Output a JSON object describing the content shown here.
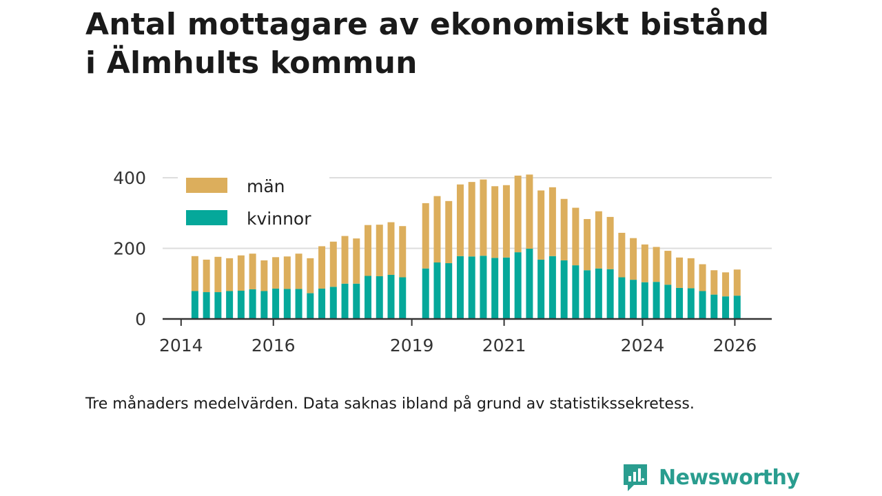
{
  "title_line1": "Antal mottagare av ekonomiskt bistånd",
  "title_line2": "i Älmhults kommun",
  "note": "Tre månaders medelvärden. Data saknas ibland på grund av statistikssekretess.",
  "brand": {
    "name": "Newsworthy"
  },
  "colors": {
    "man": "#dcae5c",
    "kvinnor": "#05a89a",
    "axis": "#333333",
    "grid": "#dddddd",
    "brand": "#2a9d8f"
  },
  "chart_data": {
    "type": "bar",
    "stacked": true,
    "title": "Antal mottagare av ekonomiskt bistånd i Älmhults kommun",
    "xlabel": "",
    "ylabel": "",
    "ylim": [
      0,
      420
    ],
    "yticks": [
      0,
      200,
      400
    ],
    "xticks": [
      {
        "label": "2014",
        "x": 2014.0
      },
      {
        "label": "2016",
        "x": 2016.0
      },
      {
        "label": "2019",
        "x": 2019.0
      },
      {
        "label": "2021",
        "x": 2021.0
      },
      {
        "label": "2024",
        "x": 2024.0
      },
      {
        "label": "2026",
        "x": 2026.0
      }
    ],
    "xlim": [
      2013.6,
      2026.8
    ],
    "legend": {
      "position": "top-left",
      "entries": [
        "män",
        "kvinnor"
      ]
    },
    "series": [
      {
        "name": "kvinnor",
        "x": [
          2014.3,
          2014.55,
          2014.8,
          2015.05,
          2015.3,
          2015.55,
          2015.8,
          2016.05,
          2016.3,
          2016.55,
          2016.8,
          2017.05,
          2017.3,
          2017.55,
          2017.8,
          2018.05,
          2018.3,
          2018.55,
          2018.8,
          2019.3,
          2019.55,
          2019.8,
          2020.05,
          2020.3,
          2020.55,
          2020.8,
          2021.05,
          2021.3,
          2021.55,
          2021.8,
          2022.05,
          2022.3,
          2022.55,
          2022.8,
          2023.05,
          2023.3,
          2023.55,
          2023.8,
          2024.05,
          2024.3,
          2024.55,
          2024.8,
          2025.05,
          2025.3,
          2025.55,
          2025.8,
          2026.05
        ],
        "values": [
          79,
          76,
          76,
          79,
          80,
          84,
          79,
          86,
          85,
          85,
          73,
          86,
          91,
          100,
          100,
          122,
          121,
          125,
          118,
          143,
          160,
          158,
          178,
          177,
          179,
          173,
          174,
          189,
          199,
          168,
          178,
          166,
          152,
          138,
          143,
          141,
          118,
          111,
          104,
          105,
          97,
          88,
          87,
          79,
          69,
          64,
          66
        ]
      },
      {
        "name": "män",
        "x": [
          2014.3,
          2014.55,
          2014.8,
          2015.05,
          2015.3,
          2015.55,
          2015.8,
          2016.05,
          2016.3,
          2016.55,
          2016.8,
          2017.05,
          2017.3,
          2017.55,
          2017.8,
          2018.05,
          2018.3,
          2018.55,
          2018.8,
          2019.3,
          2019.55,
          2019.8,
          2020.05,
          2020.3,
          2020.55,
          2020.8,
          2021.05,
          2021.3,
          2021.55,
          2021.8,
          2022.05,
          2022.3,
          2022.55,
          2022.8,
          2023.05,
          2023.3,
          2023.55,
          2023.8,
          2024.05,
          2024.3,
          2024.55,
          2024.8,
          2025.05,
          2025.3,
          2025.55,
          2025.8,
          2026.05
        ],
        "values": [
          99,
          92,
          100,
          93,
          100,
          101,
          87,
          89,
          92,
          100,
          99,
          120,
          128,
          135,
          128,
          144,
          146,
          149,
          145,
          185,
          188,
          176,
          203,
          211,
          216,
          203,
          205,
          217,
          210,
          196,
          195,
          174,
          163,
          145,
          162,
          148,
          126,
          118,
          107,
          99,
          96,
          86,
          85,
          76,
          69,
          68,
          74
        ]
      }
    ]
  }
}
